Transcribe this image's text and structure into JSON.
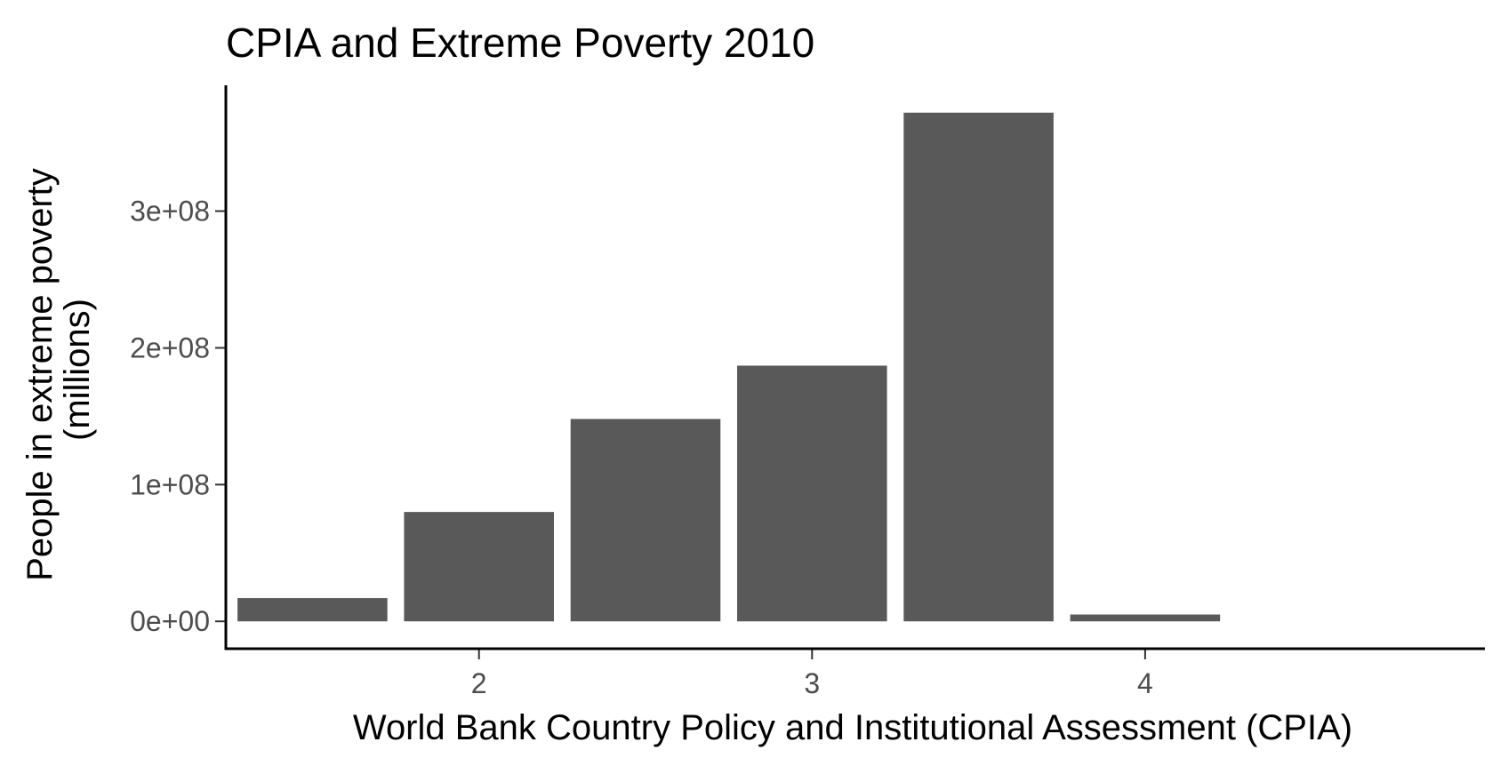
{
  "chart_data": {
    "type": "bar",
    "title": "CPIA and Extreme Poverty 2010",
    "xlabel": "World Bank Country Policy and Institutional Assessment (CPIA)",
    "ylabel": [
      "People in extreme poverty",
      "(millions)"
    ],
    "bar_width": 0.45,
    "x": [
      1.5,
      2.0,
      2.5,
      3.0,
      3.5,
      4.0
    ],
    "values": [
      17000000,
      80000000,
      148000000,
      187000000,
      372000000,
      5000000
    ],
    "xlim": [
      1.24,
      5.02
    ],
    "ylim": [
      -20000000,
      392000000
    ],
    "x_ticks": [
      2,
      3,
      4
    ],
    "x_tick_labels": [
      "2",
      "3",
      "4"
    ],
    "y_ticks": [
      0,
      100000000,
      200000000,
      300000000
    ],
    "y_tick_labels": [
      "0e+00",
      "1e+08",
      "2e+08",
      "3e+08"
    ],
    "bar_color": "#595959",
    "grid": false,
    "legend": "none"
  }
}
